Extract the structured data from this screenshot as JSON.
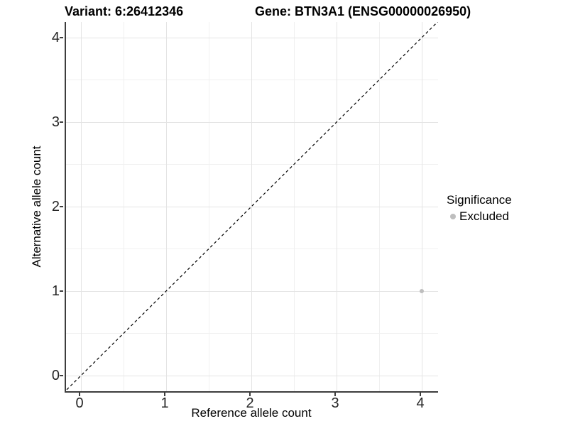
{
  "titles": {
    "variant": "Variant: 6:26412346",
    "gene": "Gene: BTN3A1 (ENSG00000026950)"
  },
  "chart_data": {
    "type": "scatter",
    "title_left": "Variant: 6:26412346",
    "title_right": "Gene: BTN3A1 (ENSG00000026950)",
    "xlabel": "Reference allele count",
    "ylabel": "Alternative allele count",
    "xlim": [
      -0.18,
      4.21
    ],
    "ylim": [
      -0.2,
      4.19
    ],
    "x_ticks": [
      0,
      1,
      2,
      3,
      4
    ],
    "y_ticks": [
      0,
      1,
      2,
      3,
      4
    ],
    "x_minor_ticks": [
      0.5,
      1.5,
      2.5,
      3.5
    ],
    "y_minor_ticks": [
      0.5,
      1.5,
      2.5,
      3.5
    ],
    "grid": true,
    "points": [
      {
        "x": 4,
        "y": 1,
        "significance": "Excluded",
        "color": "#bebebe"
      }
    ],
    "reference_line": {
      "equation": "y = x",
      "style": "dashed",
      "color": "#000000"
    },
    "legend": {
      "title": "Significance",
      "position": "right",
      "items": [
        {
          "label": "Excluded",
          "color": "#bebebe"
        }
      ]
    }
  },
  "colors": {
    "background": "#ffffff",
    "axis_line": "#3d3d3d",
    "grid_major": "#e4e4e4",
    "grid_minor": "#f0f0f0",
    "tick_text": "#262626",
    "excluded_point": "#bebebe"
  }
}
